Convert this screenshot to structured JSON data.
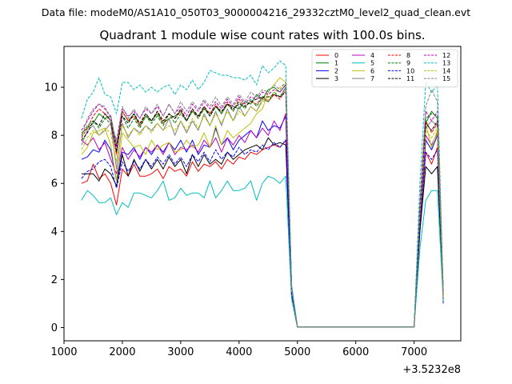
{
  "suptitle": "Data file: modeM0/AS1A10_050T03_9000004216_29332cztM0_level2_quad_clean.evt",
  "chart_data": {
    "type": "line",
    "title": "Quadrant 1 module wise count rates with 100.0s bins.",
    "xlabel": "",
    "ylabel": "",
    "x_offset_label": "+3.5232e8",
    "xlim": [
      1000,
      7800
    ],
    "ylim": [
      -0.55,
      11.7
    ],
    "x_ticks": [
      1000,
      2000,
      3000,
      4000,
      5000,
      6000,
      7000
    ],
    "x_tick_labels": [
      "1000",
      "2000",
      "3000",
      "4000",
      "5000",
      "6000",
      "7000"
    ],
    "y_ticks": [
      0,
      2,
      4,
      6,
      8,
      10
    ],
    "y_tick_labels": [
      "0",
      "2",
      "4",
      "6",
      "8",
      "10"
    ],
    "x": [
      1300,
      1400,
      1500,
      1600,
      1700,
      1800,
      1900,
      2000,
      2100,
      2200,
      2300,
      2400,
      2500,
      2600,
      2700,
      2800,
      2900,
      3000,
      3100,
      3200,
      3300,
      3400,
      3500,
      3600,
      3700,
      3800,
      3900,
      4000,
      4100,
      4200,
      4300,
      4400,
      4500,
      4600,
      4700,
      4800,
      4900,
      5000,
      5100,
      5200,
      5300,
      5400,
      5500,
      5600,
      5700,
      5800,
      5900,
      6000,
      6100,
      6200,
      6300,
      6400,
      6500,
      6600,
      6700,
      6800,
      6900,
      7000,
      7100,
      7200,
      7300,
      7400,
      7500
    ],
    "legend_columns": 4,
    "legend_position": "top-right",
    "series": [
      {
        "name": "0",
        "color": "#ff0000",
        "dash": "solid",
        "values": [
          6.0,
          6.1,
          6.8,
          6.2,
          6.4,
          6.0,
          5.1,
          6.6,
          6.3,
          6.8,
          6.3,
          6.3,
          6.4,
          6.6,
          6.2,
          6.7,
          6.5,
          6.6,
          6.3,
          6.9,
          6.5,
          6.8,
          6.7,
          6.9,
          6.6,
          7.0,
          6.8,
          7.1,
          7.0,
          7.3,
          7.2,
          7.4,
          7.5,
          7.6,
          7.5,
          7.8,
          1.3,
          0.02,
          0.02,
          0.02,
          0.02,
          0.02,
          0.02,
          0.02,
          0.02,
          0.02,
          0.02,
          0.02,
          0.02,
          0.02,
          0.02,
          0.02,
          0.02,
          0.02,
          0.02,
          0.02,
          0.02,
          0.02,
          4.2,
          7.3,
          6.8,
          7.5,
          1.2
        ]
      },
      {
        "name": "1",
        "color": "#008000",
        "dash": "solid",
        "values": [
          8.1,
          8.3,
          8.5,
          8.9,
          8.7,
          8.8,
          7.6,
          9.0,
          8.6,
          8.9,
          8.4,
          8.8,
          8.6,
          8.9,
          8.5,
          8.7,
          8.8,
          9.0,
          8.6,
          9.0,
          8.8,
          9.1,
          8.9,
          9.2,
          8.9,
          9.3,
          9.2,
          9.1,
          9.4,
          9.3,
          9.7,
          9.5,
          9.9,
          10.0,
          9.8,
          10.1,
          1.7,
          0.02,
          0.02,
          0.02,
          0.02,
          0.02,
          0.02,
          0.02,
          0.02,
          0.02,
          0.02,
          0.02,
          0.02,
          0.02,
          0.02,
          0.02,
          0.02,
          0.02,
          0.02,
          0.02,
          0.02,
          0.02,
          5.0,
          8.5,
          9.0,
          8.7,
          1.5
        ]
      },
      {
        "name": "2",
        "color": "#0000ff",
        "dash": "solid",
        "values": [
          7.0,
          7.1,
          7.4,
          7.3,
          7.8,
          7.4,
          6.1,
          7.3,
          7.2,
          7.5,
          7.0,
          7.5,
          7.2,
          7.6,
          7.3,
          7.7,
          7.4,
          7.8,
          7.3,
          7.8,
          7.2,
          7.6,
          7.5,
          8.3,
          7.6,
          7.9,
          7.4,
          7.8,
          8.0,
          8.2,
          7.9,
          8.6,
          8.2,
          8.4,
          8.3,
          8.8,
          1.4,
          0.02,
          0.02,
          0.02,
          0.02,
          0.02,
          0.02,
          0.02,
          0.02,
          0.02,
          0.02,
          0.02,
          0.02,
          0.02,
          0.02,
          0.02,
          0.02,
          0.02,
          0.02,
          0.02,
          0.02,
          0.02,
          4.6,
          7.8,
          7.4,
          8.0,
          1.0
        ]
      },
      {
        "name": "3",
        "color": "#000000",
        "dash": "solid",
        "values": [
          6.4,
          6.4,
          6.4,
          6.1,
          6.6,
          6.4,
          5.9,
          7.2,
          6.3,
          7.0,
          6.5,
          7.0,
          6.6,
          7.0,
          6.6,
          7.1,
          6.7,
          7.0,
          6.4,
          7.2,
          6.7,
          7.2,
          6.8,
          7.0,
          6.8,
          7.3,
          7.0,
          7.2,
          7.4,
          7.5,
          7.6,
          7.4,
          7.9,
          7.6,
          7.7,
          7.6,
          1.3,
          0.02,
          0.02,
          0.02,
          0.02,
          0.02,
          0.02,
          0.02,
          0.02,
          0.02,
          0.02,
          0.02,
          0.02,
          0.02,
          0.02,
          0.02,
          0.02,
          0.02,
          0.02,
          0.02,
          0.02,
          0.02,
          4.0,
          6.7,
          6.4,
          6.7,
          1.3
        ]
      },
      {
        "name": "4",
        "color": "#bf00bf",
        "dash": "solid",
        "values": [
          7.8,
          7.6,
          7.9,
          7.4,
          7.7,
          7.0,
          6.4,
          7.5,
          7.0,
          7.4,
          7.1,
          7.5,
          7.3,
          7.6,
          7.2,
          7.7,
          7.2,
          7.5,
          7.4,
          7.6,
          7.3,
          7.8,
          7.5,
          7.9,
          7.3,
          7.9,
          7.6,
          8.0,
          7.7,
          8.2,
          7.9,
          8.3,
          8.0,
          8.6,
          8.2,
          8.9,
          1.5,
          0.02,
          0.02,
          0.02,
          0.02,
          0.02,
          0.02,
          0.02,
          0.02,
          0.02,
          0.02,
          0.02,
          0.02,
          0.02,
          0.02,
          0.02,
          0.02,
          0.02,
          0.02,
          0.02,
          0.02,
          0.02,
          4.8,
          8.0,
          7.6,
          8.1,
          1.4
        ]
      },
      {
        "name": "5",
        "color": "#00bfbf",
        "dash": "solid",
        "values": [
          5.3,
          5.7,
          5.5,
          5.2,
          5.2,
          5.4,
          4.7,
          5.2,
          5.0,
          5.6,
          5.6,
          5.5,
          5.4,
          5.7,
          6.1,
          5.3,
          5.4,
          5.8,
          5.5,
          5.6,
          5.6,
          5.4,
          6.1,
          5.4,
          5.7,
          6.1,
          5.7,
          5.7,
          5.8,
          6.1,
          5.3,
          6.0,
          6.3,
          6.2,
          6.0,
          6.3,
          1.2,
          0.02,
          0.02,
          0.02,
          0.02,
          0.02,
          0.02,
          0.02,
          0.02,
          0.02,
          0.02,
          0.02,
          0.02,
          0.02,
          0.02,
          0.02,
          0.02,
          0.02,
          0.02,
          0.02,
          0.02,
          0.02,
          3.3,
          5.3,
          5.7,
          5.7,
          1.1
        ]
      },
      {
        "name": "6",
        "color": "#bfbf00",
        "dash": "solid",
        "values": [
          7.2,
          7.5,
          8.1,
          8.2,
          8.3,
          7.6,
          6.1,
          8.1,
          7.8,
          7.5,
          7.6,
          7.2,
          7.8,
          7.4,
          7.6,
          7.7,
          7.3,
          7.4,
          7.8,
          7.5,
          7.6,
          8.1,
          7.5,
          8.4,
          7.6,
          8.2,
          7.9,
          8.1,
          8.3,
          8.5,
          8.9,
          9.1,
          9.8,
          10.1,
          10.4,
          10.2,
          1.6,
          0.02,
          0.02,
          0.02,
          0.02,
          0.02,
          0.02,
          0.02,
          0.02,
          0.02,
          0.02,
          0.02,
          0.02,
          0.02,
          0.02,
          0.02,
          0.02,
          0.02,
          0.02,
          0.02,
          0.02,
          0.02,
          4.7,
          8.5,
          7.5,
          8.2,
          1.2
        ]
      },
      {
        "name": "7",
        "color": "#808080",
        "dash": "solid",
        "values": [
          7.6,
          8.2,
          8.4,
          8.0,
          8.2,
          8.5,
          6.6,
          8.5,
          7.9,
          8.3,
          8.1,
          8.4,
          8.2,
          8.5,
          8.2,
          8.7,
          8.0,
          8.6,
          8.1,
          8.6,
          8.2,
          8.9,
          8.4,
          9.0,
          8.4,
          9.1,
          8.6,
          9.2,
          8.8,
          9.2,
          9.0,
          9.5,
          9.4,
          9.7,
          9.6,
          10.0,
          1.7,
          0.02,
          0.02,
          0.02,
          0.02,
          0.02,
          0.02,
          0.02,
          0.02,
          0.02,
          0.02,
          0.02,
          0.02,
          0.02,
          0.02,
          0.02,
          0.02,
          0.02,
          0.02,
          0.02,
          0.02,
          0.02,
          4.9,
          8.3,
          8.6,
          8.4,
          1.3
        ]
      },
      {
        "name": "8",
        "color": "#ff0000",
        "dash": "dashed",
        "values": [
          7.9,
          8.3,
          8.8,
          9.1,
          8.9,
          8.6,
          7.2,
          9.0,
          8.6,
          8.8,
          8.4,
          8.9,
          8.6,
          9.0,
          8.5,
          8.9,
          8.7,
          9.0,
          8.6,
          9.1,
          8.7,
          9.2,
          8.9,
          9.3,
          8.9,
          9.4,
          9.0,
          9.5,
          9.2,
          9.4,
          9.3,
          9.6,
          9.4,
          9.7,
          9.5,
          9.9,
          1.7,
          0.02,
          0.02,
          0.02,
          0.02,
          0.02,
          0.02,
          0.02,
          0.02,
          0.02,
          0.02,
          0.02,
          0.02,
          0.02,
          0.02,
          0.02,
          0.02,
          0.02,
          0.02,
          0.02,
          0.02,
          0.02,
          5.0,
          8.6,
          8.1,
          8.5,
          1.4
        ]
      },
      {
        "name": "9",
        "color": "#008000",
        "dash": "dashed",
        "values": [
          8.0,
          8.4,
          8.6,
          8.3,
          8.7,
          8.5,
          7.4,
          8.8,
          8.3,
          8.7,
          8.3,
          8.8,
          8.5,
          8.8,
          8.4,
          8.9,
          8.5,
          8.9,
          8.6,
          9.0,
          8.7,
          9.1,
          8.8,
          9.2,
          8.9,
          9.3,
          9.0,
          9.4,
          9.1,
          9.5,
          9.2,
          9.6,
          9.4,
          9.8,
          9.6,
          10.0,
          1.7,
          0.02,
          0.02,
          0.02,
          0.02,
          0.02,
          0.02,
          0.02,
          0.02,
          0.02,
          0.02,
          0.02,
          0.02,
          0.02,
          0.02,
          0.02,
          0.02,
          0.02,
          0.02,
          0.02,
          0.02,
          0.02,
          5.1,
          8.7,
          8.9,
          8.8,
          1.5
        ]
      },
      {
        "name": "10",
        "color": "#0000ff",
        "dash": "dashed",
        "values": [
          6.2,
          6.5,
          6.6,
          6.9,
          7.0,
          6.7,
          5.8,
          6.9,
          6.5,
          6.9,
          6.6,
          7.0,
          6.7,
          7.1,
          6.8,
          7.2,
          6.8,
          7.1,
          6.7,
          7.2,
          6.9,
          7.3,
          6.9,
          7.4,
          7.0,
          7.3,
          7.1,
          7.5,
          7.2,
          7.4,
          7.3,
          7.6,
          7.4,
          7.7,
          7.5,
          7.8,
          1.4,
          0.02,
          0.02,
          0.02,
          0.02,
          0.02,
          0.02,
          0.02,
          0.02,
          0.02,
          0.02,
          0.02,
          0.02,
          0.02,
          0.02,
          0.02,
          0.02,
          0.02,
          0.02,
          0.02,
          0.02,
          0.02,
          4.3,
          7.3,
          7.0,
          7.4,
          1.2
        ]
      },
      {
        "name": "11",
        "color": "#000000",
        "dash": "dashed",
        "values": [
          7.8,
          8.1,
          8.6,
          8.4,
          8.9,
          8.6,
          7.3,
          8.8,
          8.5,
          8.9,
          8.5,
          8.9,
          8.6,
          9.0,
          8.6,
          8.9,
          8.7,
          9.1,
          8.6,
          9.1,
          8.8,
          9.2,
          8.8,
          9.2,
          9.0,
          9.3,
          9.1,
          9.3,
          9.2,
          9.4,
          9.5,
          9.6,
          9.6,
          9.7,
          9.6,
          9.8,
          1.7,
          0.02,
          0.02,
          0.02,
          0.02,
          0.02,
          0.02,
          0.02,
          0.02,
          0.02,
          0.02,
          0.02,
          0.02,
          0.02,
          0.02,
          0.02,
          0.02,
          0.02,
          0.02,
          0.02,
          0.02,
          0.02,
          4.9,
          8.5,
          8.2,
          8.6,
          1.4
        ]
      },
      {
        "name": "12",
        "color": "#bf00bf",
        "dash": "dashed",
        "values": [
          8.2,
          8.6,
          9.0,
          9.3,
          9.1,
          8.8,
          7.5,
          9.1,
          8.8,
          9.0,
          8.7,
          9.1,
          8.9,
          9.2,
          8.8,
          9.3,
          8.9,
          9.2,
          8.8,
          9.3,
          9.0,
          9.4,
          9.1,
          9.4,
          9.1,
          9.5,
          9.2,
          9.6,
          9.3,
          9.6,
          9.5,
          9.8,
          9.7,
          9.9,
          9.8,
          10.1,
          1.7,
          0.02,
          0.02,
          0.02,
          0.02,
          0.02,
          0.02,
          0.02,
          0.02,
          0.02,
          0.02,
          0.02,
          0.02,
          0.02,
          0.02,
          0.02,
          0.02,
          0.02,
          0.02,
          0.02,
          0.02,
          0.02,
          5.2,
          9.0,
          8.6,
          9.0,
          1.5
        ]
      },
      {
        "name": "13",
        "color": "#00bfbf",
        "dash": "dashed",
        "values": [
          8.7,
          9.5,
          9.8,
          10.4,
          9.7,
          9.6,
          8.9,
          10.2,
          10.2,
          9.9,
          10.1,
          9.8,
          10.0,
          9.8,
          10.0,
          10.1,
          9.7,
          10.1,
          9.9,
          10.3,
          9.9,
          10.2,
          10.7,
          10.6,
          10.5,
          10.5,
          10.4,
          10.4,
          10.3,
          10.5,
          10.1,
          10.9,
          10.6,
          10.8,
          11.1,
          10.9,
          1.8,
          0.02,
          0.02,
          0.02,
          0.02,
          0.02,
          0.02,
          0.02,
          0.02,
          0.02,
          0.02,
          0.02,
          0.02,
          0.02,
          0.02,
          0.02,
          0.02,
          0.02,
          0.02,
          0.02,
          0.02,
          0.02,
          6.0,
          10.2,
          9.8,
          10.1,
          1.5
        ]
      },
      {
        "name": "14",
        "color": "#bfbf00",
        "dash": "dashed",
        "values": [
          7.4,
          7.9,
          8.2,
          8.0,
          8.3,
          8.1,
          6.9,
          8.4,
          8.0,
          8.3,
          8.0,
          8.4,
          8.1,
          8.5,
          8.2,
          8.4,
          8.2,
          8.6,
          8.2,
          8.7,
          8.3,
          8.8,
          8.4,
          8.9,
          8.5,
          9.0,
          8.6,
          9.0,
          8.8,
          9.2,
          9.0,
          9.4,
          9.5,
          9.8,
          10.0,
          10.2,
          1.6,
          0.02,
          0.02,
          0.02,
          0.02,
          0.02,
          0.02,
          0.02,
          0.02,
          0.02,
          0.02,
          0.02,
          0.02,
          0.02,
          0.02,
          0.02,
          0.02,
          0.02,
          0.02,
          0.02,
          0.02,
          0.02,
          4.8,
          8.2,
          7.9,
          8.3,
          1.3
        ]
      },
      {
        "name": "15",
        "color": "#808080",
        "dash": "dashed",
        "values": [
          7.9,
          8.7,
          9.1,
          9.3,
          9.2,
          8.6,
          7.8,
          9.2,
          8.7,
          9.1,
          8.7,
          9.2,
          8.9,
          9.3,
          8.8,
          9.3,
          8.9,
          9.4,
          9.0,
          9.4,
          9.1,
          9.5,
          9.2,
          9.6,
          9.2,
          9.6,
          9.3,
          9.7,
          9.4,
          9.8,
          9.6,
          9.9,
          9.8,
          10.1,
          9.9,
          10.2,
          1.7,
          0.02,
          0.02,
          0.02,
          0.02,
          0.02,
          0.02,
          0.02,
          0.02,
          0.02,
          0.02,
          0.02,
          0.02,
          0.02,
          0.02,
          0.02,
          0.02,
          0.02,
          0.02,
          0.02,
          0.02,
          0.02,
          5.0,
          9.2,
          9.9,
          9.4,
          1.4
        ]
      }
    ]
  }
}
